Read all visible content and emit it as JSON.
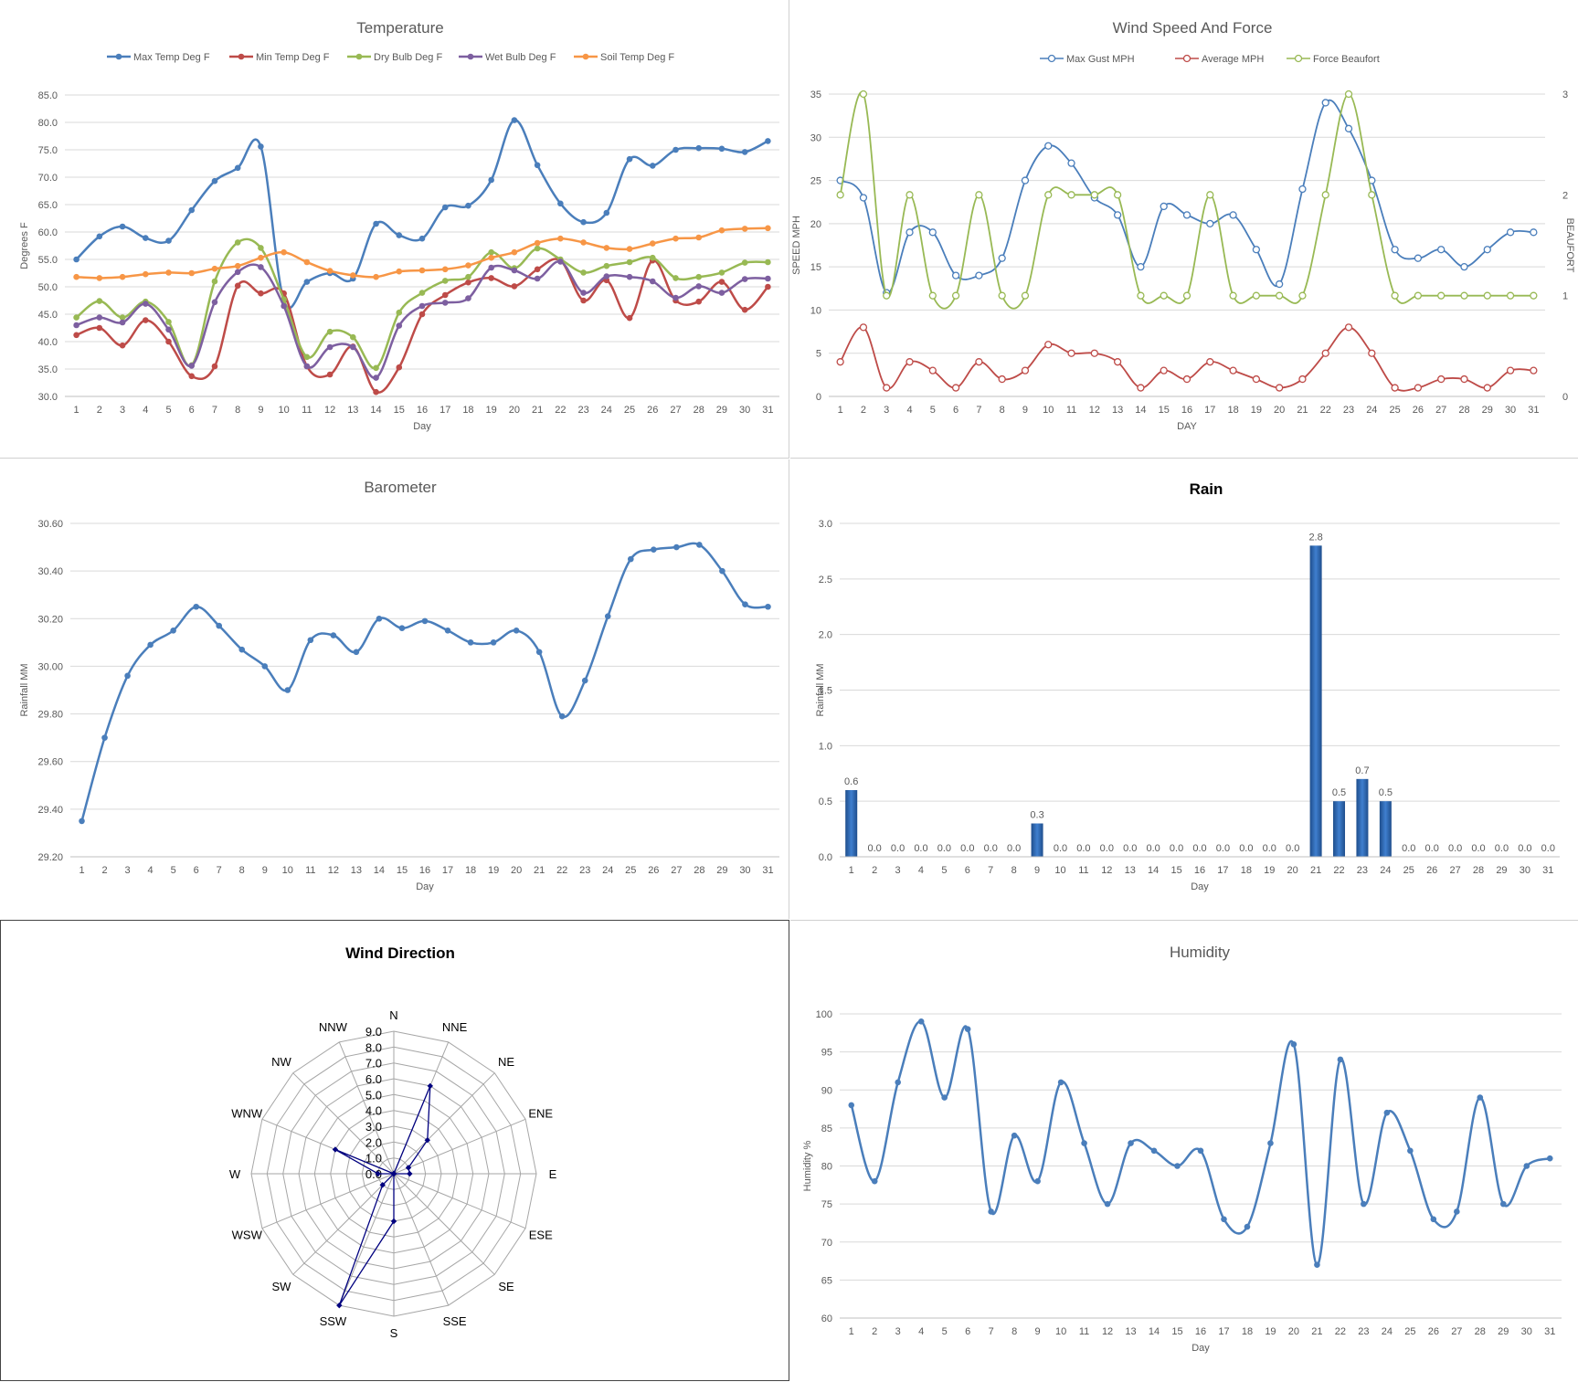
{
  "days": [
    "1",
    "2",
    "3",
    "4",
    "5",
    "6",
    "7",
    "8",
    "9",
    "10",
    "11",
    "12",
    "13",
    "14",
    "15",
    "16",
    "17",
    "18",
    "19",
    "20",
    "21",
    "22",
    "23",
    "24",
    "25",
    "26",
    "27",
    "28",
    "29",
    "30",
    "31"
  ],
  "temperature": {
    "title": "Temperature",
    "xlabel": "Day",
    "ylabel": "Degrees F",
    "chart_data": {
      "type": "line",
      "ylim": [
        30,
        85
      ],
      "yticks": [
        "30.0",
        "35.0",
        "40.0",
        "45.0",
        "50.0",
        "55.0",
        "60.0",
        "65.0",
        "70.0",
        "75.0",
        "80.0",
        "85.0"
      ],
      "series": [
        {
          "name": "Max Temp Deg F",
          "color": "#4a7ebb",
          "values": [
            55,
            59.2,
            61,
            58.9,
            58.4,
            64,
            69.3,
            71.7,
            75.6,
            47.5,
            50.9,
            52.5,
            51.5,
            61.5,
            59.4,
            58.8,
            64.5,
            64.8,
            69.5,
            80.4,
            72.2,
            65.2,
            61.8,
            63.5,
            73.3,
            72.1,
            75,
            75.3,
            75.2,
            74.6,
            76.6
          ]
        },
        {
          "name": "Min Temp Deg F",
          "color": "#be4b48",
          "values": [
            41.2,
            42.5,
            39.3,
            43.9,
            40,
            33.7,
            35.5,
            50.2,
            48.8,
            48.8,
            35.5,
            34,
            39.1,
            30.8,
            35.3,
            45,
            48.5,
            50.8,
            51.6,
            50.1,
            53.2,
            54.8,
            47.5,
            51.2,
            44.3,
            54.8,
            47.5,
            47.3,
            50.9,
            45.8,
            50
          ]
        },
        {
          "name": "Dry Bulb Deg F",
          "color": "#98b954",
          "values": [
            44.4,
            47.4,
            44.4,
            47.3,
            43.6,
            35.7,
            51,
            58.1,
            57.1,
            47.7,
            37.2,
            41.8,
            40.8,
            35.2,
            45.3,
            48.9,
            51.1,
            51.8,
            56.3,
            53.4,
            57,
            55,
            52.6,
            53.8,
            54.5,
            55.3,
            51.6,
            51.8,
            52.6,
            54.4,
            54.5
          ]
        },
        {
          "name": "Wet Bulb Deg F",
          "color": "#7d5fa0",
          "values": [
            43,
            44.4,
            43.5,
            46.9,
            42.2,
            35.6,
            47.2,
            52.7,
            53.6,
            46.5,
            35.5,
            39,
            39,
            33.4,
            42.9,
            46.5,
            47.1,
            47.9,
            53.5,
            53,
            51.5,
            54.6,
            48.9,
            51.9,
            51.8,
            51,
            48,
            50.1,
            48.9,
            51.4,
            51.5
          ]
        },
        {
          "name": "Soil Temp Deg F",
          "color": "#f79646",
          "values": [
            51.8,
            51.6,
            51.8,
            52.3,
            52.6,
            52.5,
            53.3,
            53.8,
            55.3,
            56.3,
            54.5,
            52.9,
            52.1,
            51.8,
            52.8,
            53,
            53.2,
            53.9,
            55.3,
            56.3,
            58,
            58.8,
            58.1,
            57.1,
            56.9,
            57.9,
            58.8,
            59,
            60.3,
            60.6,
            60.7
          ]
        }
      ]
    }
  },
  "wind": {
    "title": "Wind Speed And Force",
    "xlabel": "DAY",
    "ylabel": "SPEED MPH",
    "y2label": "BEAUFORT",
    "chart_data": {
      "type": "line",
      "ylim": [
        0,
        35
      ],
      "y2lim": [
        0,
        3
      ],
      "yticks": [
        "0",
        "5",
        "10",
        "15",
        "20",
        "25",
        "30",
        "35"
      ],
      "y2ticks": [
        "0",
        "1",
        "2",
        "3"
      ],
      "series": [
        {
          "name": "Max Gust MPH",
          "color": "#4a7ebb",
          "axis": "left",
          "values": [
            25,
            23,
            12,
            19,
            19,
            14,
            14,
            16,
            25,
            29,
            27,
            23,
            21,
            15,
            22,
            21,
            20,
            21,
            17,
            13,
            24,
            34,
            31,
            25,
            17,
            16,
            17,
            15,
            17,
            19,
            19
          ]
        },
        {
          "name": "Average MPH",
          "color": "#be4b48",
          "axis": "left",
          "values": [
            4,
            8,
            1,
            4,
            3,
            1,
            4,
            2,
            3,
            6,
            5,
            5,
            4,
            1,
            3,
            2,
            4,
            3,
            2,
            1,
            2,
            5,
            8,
            5,
            1,
            1,
            2,
            2,
            1,
            3,
            3
          ]
        },
        {
          "name": "Force Beaufort",
          "color": "#98b954",
          "axis": "right",
          "values": [
            2,
            3,
            1,
            2,
            1,
            1,
            2,
            1,
            1,
            2,
            2,
            2,
            2,
            1,
            1,
            1,
            2,
            1,
            1,
            1,
            1,
            2,
            3,
            2,
            1,
            1,
            1,
            1,
            1,
            1,
            1
          ]
        }
      ]
    }
  },
  "barometer": {
    "title": "Barometer",
    "xlabel": "Day",
    "ylabel": "Rainfall MM",
    "chart_data": {
      "type": "line",
      "ylim": [
        29.2,
        30.6
      ],
      "yticks": [
        "29.20",
        "29.40",
        "29.60",
        "29.80",
        "30.00",
        "30.20",
        "30.40",
        "30.60"
      ],
      "series": [
        {
          "name": "",
          "color": "#4a7ebb",
          "values": [
            29.35,
            29.7,
            29.96,
            30.09,
            30.15,
            30.25,
            30.17,
            30.07,
            30,
            29.9,
            30.11,
            30.13,
            30.06,
            30.2,
            30.16,
            30.19,
            30.15,
            30.1,
            30.1,
            30.15,
            30.06,
            29.79,
            29.94,
            30.21,
            30.45,
            30.49,
            30.5,
            30.51,
            30.4,
            30.26,
            30.25
          ]
        }
      ]
    }
  },
  "rain": {
    "title": "Rain",
    "xlabel": "Day",
    "ylabel": "Rainfall MM",
    "chart_data": {
      "type": "bar",
      "ylim": [
        0,
        3
      ],
      "yticks": [
        "0.0",
        "0.5",
        "1.0",
        "1.5",
        "2.0",
        "2.5",
        "3.0"
      ],
      "color": "#3f7fcf",
      "values": [
        0.6,
        0,
        0,
        0,
        0,
        0,
        0,
        0,
        0.3,
        0,
        0,
        0,
        0,
        0,
        0,
        0,
        0,
        0,
        0,
        0,
        2.8,
        0.5,
        0.7,
        0.5,
        0,
        0,
        0,
        0,
        0,
        0,
        0
      ],
      "labels": [
        "0.6",
        "0.0",
        "0.0",
        "0.0",
        "0.0",
        "0.0",
        "0.0",
        "0.0",
        "0.3",
        "0.0",
        "0.0",
        "0.0",
        "0.0",
        "0.0",
        "0.0",
        "0.0",
        "0.0",
        "0.0",
        "0.0",
        "0.0",
        "2.8",
        "0.5",
        "0.7",
        "0.5",
        "0.0",
        "0.0",
        "0.0",
        "0.0",
        "0.0",
        "0.0",
        "0.0"
      ]
    }
  },
  "direction": {
    "title": "Wind Direction",
    "chart_data": {
      "type": "radar",
      "rmax": 9,
      "rticks": [
        "0.0",
        "1.0",
        "2.0",
        "3.0",
        "4.0",
        "5.0",
        "6.0",
        "7.0",
        "8.0",
        "9.0"
      ],
      "color": "#00007f",
      "directions": [
        "N",
        "NNE",
        "NE",
        "ENE",
        "E",
        "ESE",
        "SE",
        "SSE",
        "S",
        "SSW",
        "SW",
        "WSW",
        "W",
        "WNW",
        "NW",
        "NNW"
      ],
      "values": [
        0,
        6,
        3,
        1,
        1,
        0,
        0,
        0,
        3,
        9,
        1,
        0,
        1,
        4,
        0,
        0
      ]
    }
  },
  "humidity": {
    "title": "Humidity",
    "xlabel": "Day",
    "ylabel": "Humidity  %",
    "chart_data": {
      "type": "line",
      "ylim": [
        60,
        100
      ],
      "yticks": [
        "60",
        "65",
        "70",
        "75",
        "80",
        "85",
        "90",
        "95",
        "100"
      ],
      "series": [
        {
          "name": "",
          "color": "#4a7ebb",
          "values": [
            88,
            78,
            91,
            99,
            89,
            98,
            74,
            84,
            78,
            91,
            83,
            75,
            83,
            82,
            80,
            82,
            73,
            72,
            83,
            96,
            67,
            94,
            75,
            87,
            82,
            73,
            74,
            89,
            75,
            80,
            81
          ]
        }
      ]
    }
  }
}
